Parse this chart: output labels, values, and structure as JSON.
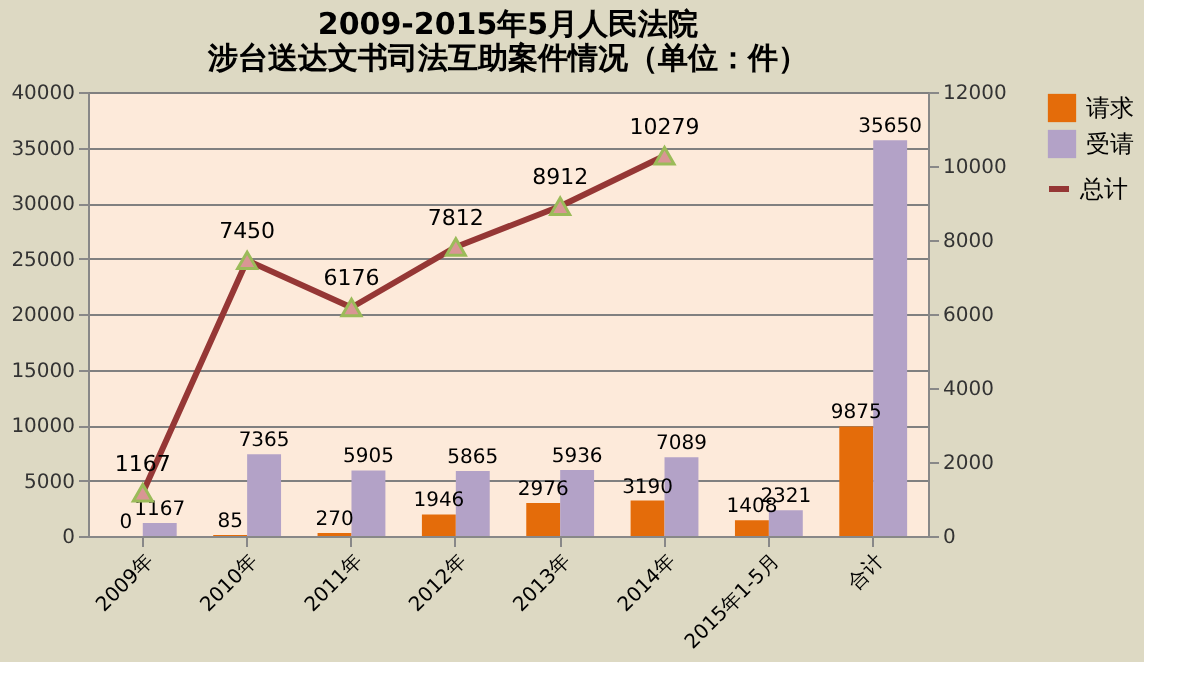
{
  "chart_data": {
    "type": "bar",
    "title": [
      "2009-2015年5月人民法院",
      "涉台送达文书司法互助案件情况（单位：件）"
    ],
    "categories": [
      "2009年",
      "2010年",
      "2011年",
      "2012年",
      "2013年",
      "2014年",
      "2015年1-5月",
      "合计"
    ],
    "series": [
      {
        "name": "请求",
        "color": "#e46c0a",
        "values": [
          0,
          85,
          270,
          1946,
          2976,
          3190,
          1408,
          9875
        ]
      },
      {
        "name": "受请",
        "color": "#b3a2c7",
        "values": [
          1167,
          7365,
          5905,
          5865,
          5936,
          7089,
          2321,
          35650
        ]
      },
      {
        "name": "总计",
        "type": "line",
        "axis": "y2",
        "color": "#953735",
        "marker": "triangle",
        "values": [
          1167,
          7450,
          6176,
          7812,
          8912,
          10279,
          null,
          null
        ]
      }
    ],
    "ylim": [
      0,
      40000
    ],
    "yticks": [
      0,
      5000,
      10000,
      15000,
      20000,
      25000,
      30000,
      35000,
      40000
    ],
    "y2lim": [
      0,
      12000
    ],
    "y2ticks": [
      0,
      2000,
      4000,
      6000,
      8000,
      10000,
      12000
    ],
    "grid": "y",
    "legend": "right",
    "data_labels": true
  }
}
